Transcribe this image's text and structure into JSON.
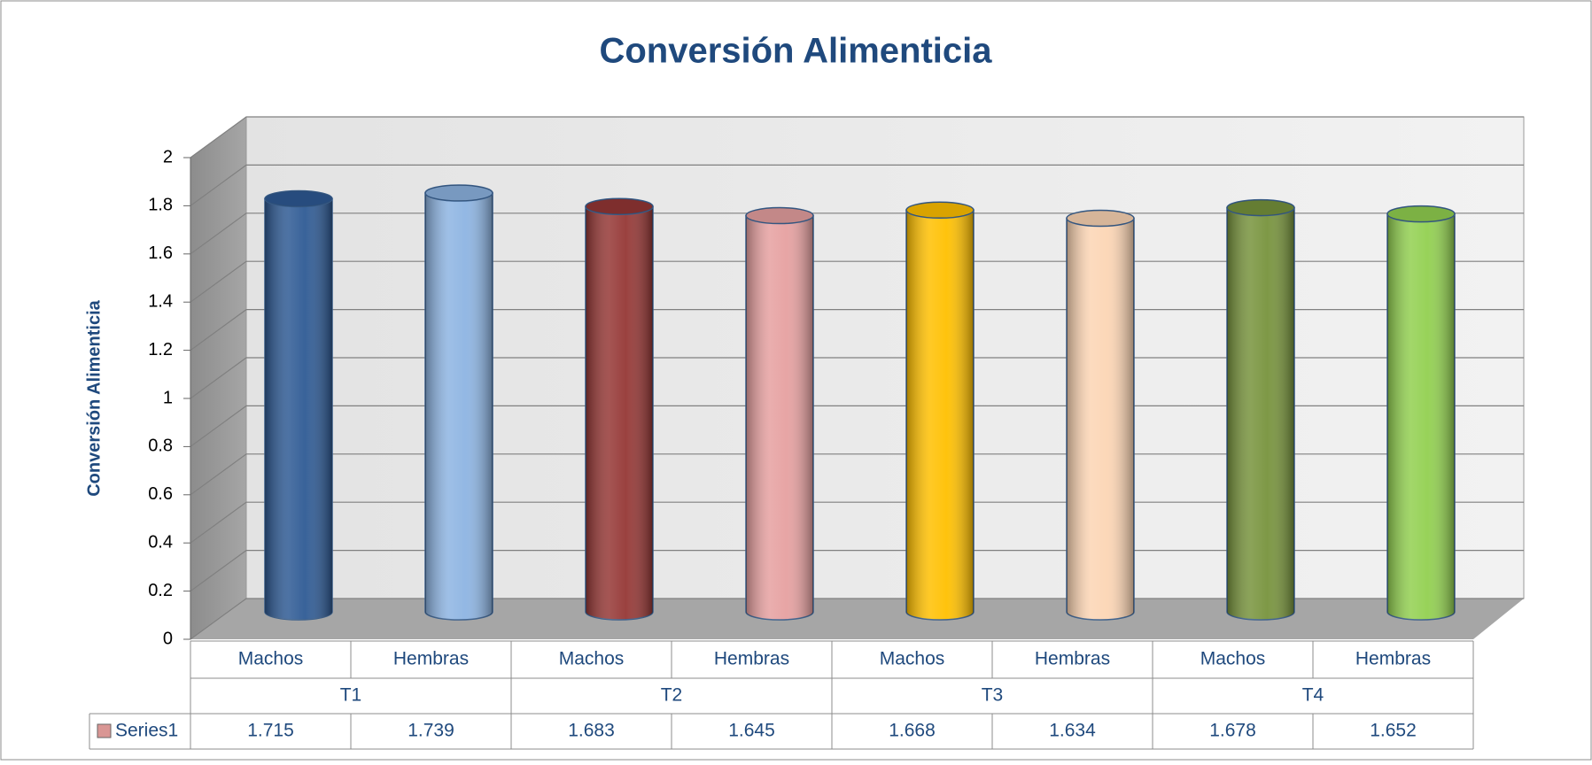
{
  "chart_data": {
    "type": "bar",
    "title": "Conversión Alimenticia",
    "y_label": "Conversión Alimenticia",
    "categories": [
      "Machos",
      "Hembras",
      "Machos",
      "Hembras",
      "Machos",
      "Hembras",
      "Machos",
      "Hembras"
    ],
    "groups": [
      "T1",
      "T2",
      "T3",
      "T4"
    ],
    "series": [
      {
        "name": "Series1",
        "color": "#d99694",
        "values": [
          1.715,
          1.739,
          1.683,
          1.645,
          1.668,
          1.634,
          1.678,
          1.652
        ],
        "colors": [
          "#2e5a94",
          "#8db4e2",
          "#953735",
          "#e6a0a0",
          "#ffc000",
          "#fcd5b4",
          "#77933c",
          "#92d050"
        ]
      }
    ],
    "ylim": [
      0,
      2
    ],
    "yticks": [
      0,
      0.2,
      0.4,
      0.6,
      0.8,
      1,
      1.2,
      1.4,
      1.6,
      1.8,
      2
    ],
    "grid": true,
    "data_table": true
  }
}
